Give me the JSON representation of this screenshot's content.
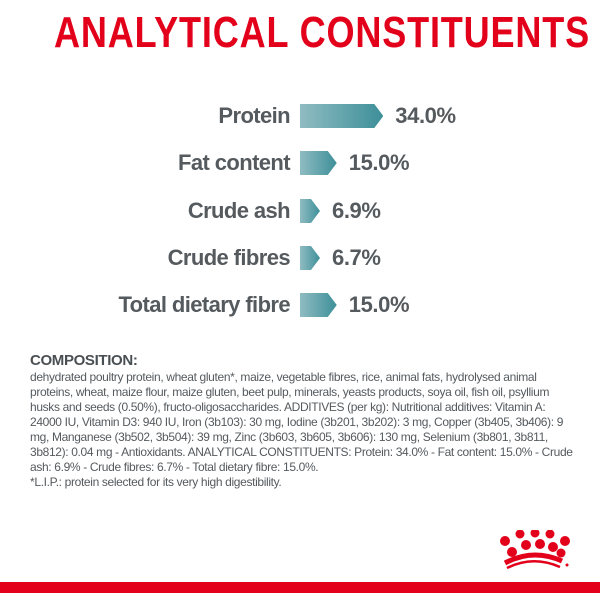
{
  "title": "ANALYTICAL CONSTITUENTS",
  "constituents": [
    {
      "label": "Protein",
      "value": "34.0%",
      "percent": 34.0
    },
    {
      "label": "Fat content",
      "value": "15.0%",
      "percent": 15.0
    },
    {
      "label": "Crude ash",
      "value": "6.9%",
      "percent": 6.9
    },
    {
      "label": "Crude fibres",
      "value": "6.7%",
      "percent": 6.7
    },
    {
      "label": "Total dietary fibre",
      "value": "15.0%",
      "percent": 15.0
    }
  ],
  "composition": {
    "heading": "COMPOSITION:",
    "text": "dehydrated poultry protein, wheat gluten*, maize, vegetable fibres, rice, animal fats, hydrolysed animal proteins, wheat, maize flour, maize gluten, beet pulp, minerals, yeasts products, soya oil, fish oil, psyllium husks and seeds (0.50%), fructo-oligosaccharides. ADDITIVES (per kg): Nutritional additives: Vitamin A: 24000 IU, Vitamin D3: 940 IU, Iron (3b103): 30 mg, Iodine (3b201, 3b202): 3 mg, Copper (3b405, 3b406): 9 mg, Manganese (3b502, 3b504): 39 mg, Zinc (3b603, 3b605, 3b606): 130 mg, Selenium (3b801, 3b811, 3b812): 0.04 mg - Antioxidants. ANALYTICAL CONSTITUENTS: Protein: 34.0% - Fat content: 15.0% - Crude ash: 6.9% - Crude fibres: 6.7% - Total dietary fibre: 15.0%.",
    "footnote": "*L.I.P.: protein selected for its very high digestibility."
  },
  "colors": {
    "brand_red": "#e2001a",
    "bar_teal": "#3d8f98",
    "text_gray": "#555a5e"
  }
}
